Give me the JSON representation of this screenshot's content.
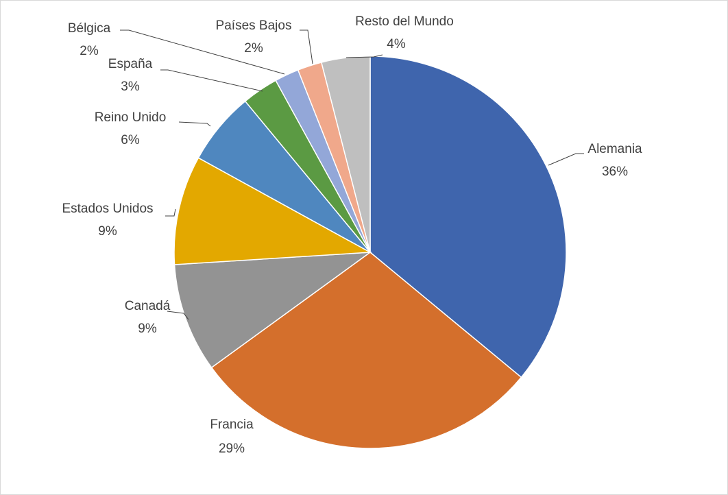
{
  "chart_data": {
    "type": "pie",
    "categories": [
      "Alemania",
      "Francia",
      "Canadá",
      "Estados Unidos",
      "Reino Unido",
      "España",
      "Bélgica",
      "Países Bajos",
      "Resto del Mundo"
    ],
    "values": [
      36,
      29,
      9,
      9,
      6,
      3,
      2,
      2,
      4
    ],
    "value_labels": [
      "36%",
      "29%",
      "9%",
      "9%",
      "6%",
      "3%",
      "2%",
      "2%",
      "4%"
    ],
    "colors": [
      "#3f65ad",
      "#d46f2c",
      "#939393",
      "#e3a800",
      "#4f87bf",
      "#5b9a43",
      "#93a7d8",
      "#f0a88b",
      "#bfbfbf"
    ]
  }
}
